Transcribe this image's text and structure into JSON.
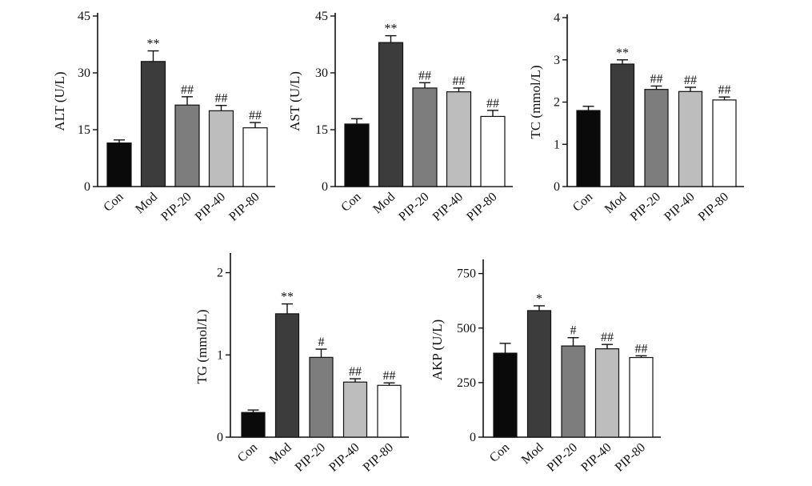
{
  "chart_data": [
    {
      "type": "bar",
      "ylabel": "ALT (U/L)",
      "categories": [
        "Con",
        "Mod",
        "PIP-20",
        "PIP-40",
        "PIP-80"
      ],
      "values": [
        11.5,
        33,
        21.5,
        20,
        15.5
      ],
      "errors": [
        0.8,
        2.8,
        2.2,
        1.4,
        1.4
      ],
      "annotations": [
        "",
        "**",
        "##",
        "##",
        "##"
      ],
      "ylim": [
        0,
        45
      ],
      "yticks": [
        0,
        15,
        30,
        45
      ],
      "ytick_labels": [
        "0",
        "15",
        "30",
        "45"
      ]
    },
    {
      "type": "bar",
      "ylabel": "AST (U/L)",
      "categories": [
        "Con",
        "Mod",
        "PIP-20",
        "PIP-40",
        "PIP-80"
      ],
      "values": [
        16.5,
        38,
        26,
        25,
        18.5
      ],
      "errors": [
        1.4,
        1.8,
        1.4,
        1.0,
        1.6
      ],
      "annotations": [
        "",
        "**",
        "##",
        "##",
        "##"
      ],
      "ylim": [
        0,
        45
      ],
      "yticks": [
        0,
        15,
        30,
        45
      ],
      "ytick_labels": [
        "0",
        "15",
        "30",
        "45"
      ]
    },
    {
      "type": "bar",
      "ylabel": "TC (mmol/L)",
      "categories": [
        "Con",
        "Mod",
        "PIP-20",
        "PIP-40",
        "PIP-80"
      ],
      "values": [
        1.8,
        2.9,
        2.3,
        2.25,
        2.05
      ],
      "errors": [
        0.1,
        0.1,
        0.08,
        0.1,
        0.07
      ],
      "annotations": [
        "",
        "**",
        "##",
        "##",
        "##"
      ],
      "ylim": [
        0,
        4
      ],
      "yticks": [
        0,
        1,
        2,
        3,
        4
      ],
      "ytick_labels": [
        "0",
        "1",
        "2",
        "3",
        "4"
      ]
    },
    {
      "type": "bar",
      "ylabel": "TG (mmol/L)",
      "categories": [
        "Con",
        "Mod",
        "PIP-20",
        "PIP-40",
        "PIP-80"
      ],
      "values": [
        0.3,
        1.5,
        0.97,
        0.67,
        0.63
      ],
      "errors": [
        0.03,
        0.12,
        0.1,
        0.04,
        0.03
      ],
      "annotations": [
        "",
        "**",
        "#",
        "##",
        "##"
      ],
      "ylim": [
        0,
        2.2
      ],
      "yticks": [
        0,
        1,
        2
      ],
      "ytick_labels": [
        "0",
        "1",
        "2"
      ]
    },
    {
      "type": "bar",
      "ylabel": "AKP (U/L)",
      "categories": [
        "Con",
        "Mod",
        "PIP-20",
        "PIP-40",
        "PIP-80"
      ],
      "values": [
        385,
        580,
        418,
        405,
        365
      ],
      "errors": [
        45,
        22,
        38,
        20,
        8
      ],
      "annotations": [
        "",
        "*",
        "#",
        "##",
        "##"
      ],
      "ylim": [
        0,
        800
      ],
      "yticks": [
        0,
        250,
        500,
        750
      ],
      "ytick_labels": [
        "0",
        "250",
        "500",
        "750"
      ]
    }
  ],
  "bar_colors": [
    "#0a0a0a",
    "#3c3c3c",
    "#7d7d7d",
    "#bdbdbd",
    "#ffffff"
  ]
}
